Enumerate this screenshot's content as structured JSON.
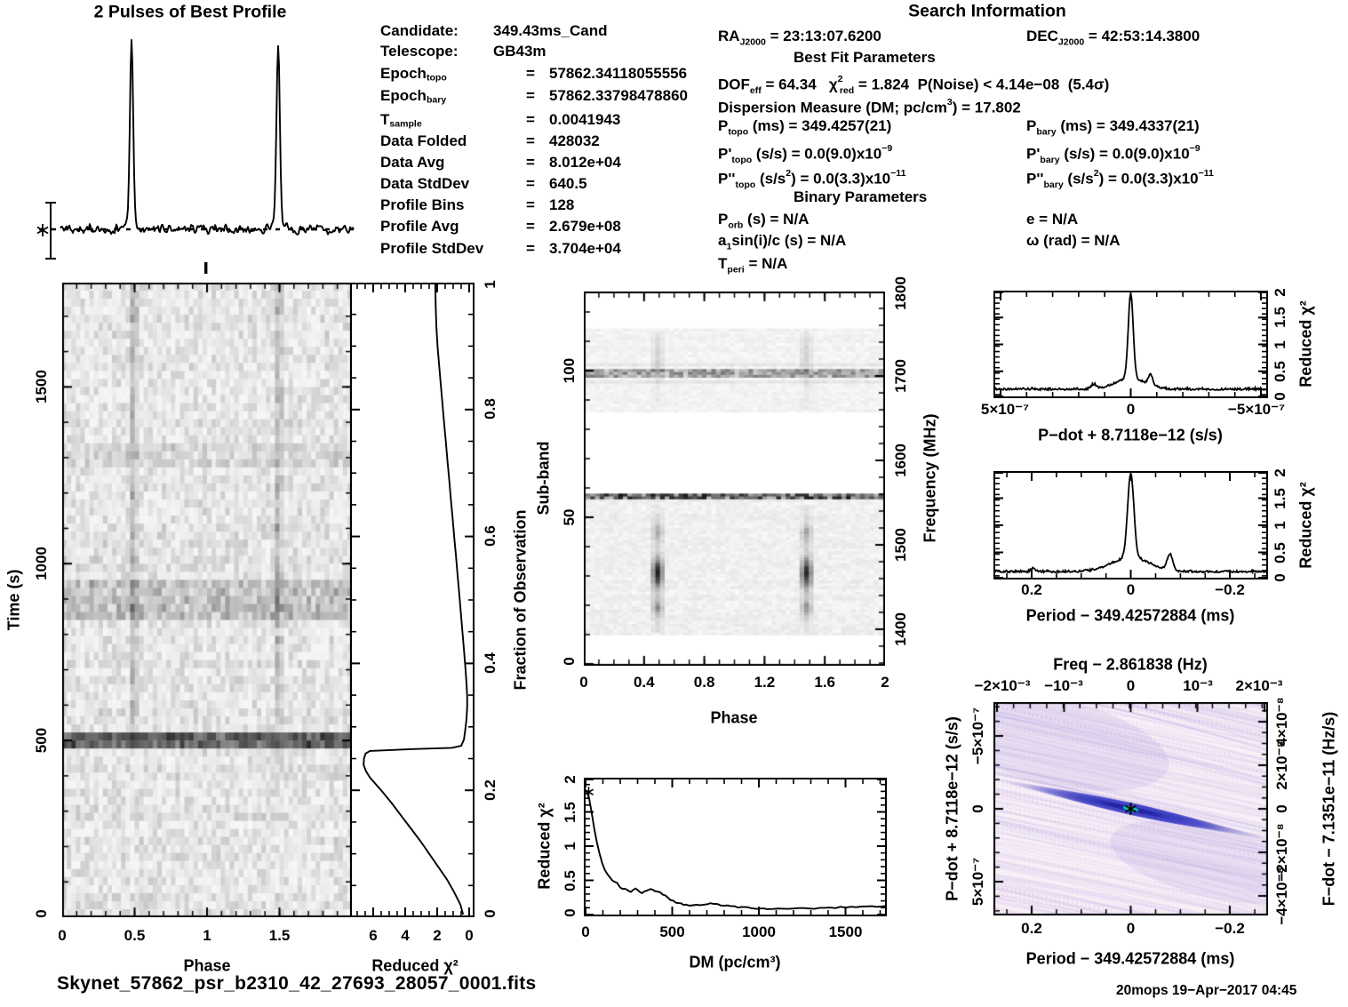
{
  "header": {
    "profile_title": "2 Pulses of Best Profile",
    "search_title": "Search Information"
  },
  "candidate_info": {
    "rows": [
      {
        "label": "Candidate:",
        "sub": "",
        "eq": "",
        "value": "349.43ms_Cand"
      },
      {
        "label": "Telescope:",
        "sub": "",
        "eq": "",
        "value": "GB43m"
      },
      {
        "label": "Epoch",
        "sub": "topo",
        "eq": "=",
        "value": "57862.34118055556"
      },
      {
        "label": "Epoch",
        "sub": "bary",
        "eq": "=",
        "value": "57862.33798478860"
      },
      {
        "label": "T",
        "sub": "sample",
        "eq": "=",
        "value": "0.0041943"
      },
      {
        "label": "Data Folded",
        "sub": "",
        "eq": "=",
        "value": "428032"
      },
      {
        "label": "Data Avg",
        "sub": "",
        "eq": "=",
        "value": "8.012e+04"
      },
      {
        "label": "Data StdDev",
        "sub": "",
        "eq": "=",
        "value": "640.5"
      },
      {
        "label": "Profile Bins",
        "sub": "",
        "eq": "=",
        "value": "128"
      },
      {
        "label": "Profile Avg",
        "sub": "",
        "eq": "=",
        "value": "2.679e+08"
      },
      {
        "label": "Profile StdDev",
        "sub": "",
        "eq": "=",
        "value": "3.704e+04"
      }
    ]
  },
  "search_info": {
    "ra": "RA<sub>J2000</sub> = 23:13:07.6200",
    "dec": "DEC<sub>J2000</sub> = 42:53:14.3800",
    "best_fit_heading": "Best Fit Parameters",
    "dof": "DOF<sub>eff</sub> = 64.34&nbsp;&nbsp;&nbsp;χ<sup>2</sup><sub class='stack'>red</sub> = 1.824&nbsp;&nbsp;P(Noise) < 4.14e−08&nbsp;&nbsp;(5.4σ)",
    "dm": "Dispersion Measure (DM; pc/cm<sup>3</sup>) = 17.802",
    "p_topo": "P<sub>topo</sub> (ms) = 349.4257(21)",
    "p_bary": "P<sub>bary</sub> (ms) = 349.4337(21)",
    "pd_topo": "P'<sub>topo</sub> (s/s) = 0.0(9.0)x10<sup>−9</sup>",
    "pd_bary": "P'<sub>bary</sub> (s/s) = 0.0(9.0)x10<sup>−9</sup>",
    "pdd_topo": "P''<sub>topo</sub> (s/s<sup>2</sup>) = 0.0(3.3)x10<sup>−11</sup>",
    "pdd_bary": "P''<sub>bary</sub> (s/s<sup>2</sup>) = 0.0(3.3)x10<sup>−11</sup>",
    "binary_heading": "Binary Parameters",
    "p_orb": "P<sub>orb</sub> (s) = N/A",
    "ecc": "e = N/A",
    "asini": "a<sub>1</sub>sin(i)/c (s) = N/A",
    "omega": "ω (rad) = N/A",
    "t_peri": "T<sub>peri</sub> = N/A"
  },
  "footer": {
    "filename": "Skynet_57862_psr_b2310_42_27693_28057_0001.fits",
    "stamp": "20mops 19−Apr−2017 04:45"
  },
  "chart_data": [
    {
      "name": "best_profile",
      "type": "line",
      "title": "2 Pulses of Best Profile",
      "x_range": [
        0,
        2
      ],
      "n_bins_per_period": 128,
      "pulse_phases": [
        0.485,
        1.485
      ],
      "pulse_fwhm_phase": 0.022,
      "peak_to_noise_sigma": 12,
      "annotations": [
        "dashed mean-level line",
        "vertical error bar at left",
        "asterisk marker on mean line",
        "small tick below profile near phase 1.16"
      ]
    },
    {
      "name": "time_vs_phase",
      "type": "heatmap",
      "xlabel": "Phase",
      "ylabel": "Time (s)",
      "x_ticks": [
        0,
        0.5,
        1,
        1.5
      ],
      "y_ticks": [
        0,
        500,
        1000,
        1500
      ],
      "x_range": [
        0,
        2
      ],
      "y_range": [
        0,
        1795
      ],
      "features": {
        "pulse_phases": [
          0.47,
          1.47
        ],
        "pulse_visible_after_time_s": 545,
        "rfi_band_times_s": [
          [
            488,
            515
          ]
        ],
        "bright_noise_times_s": [
          [
            840,
            960
          ],
          [
            1265,
            1345
          ]
        ]
      }
    },
    {
      "name": "chi2_vs_fraction",
      "type": "line",
      "xlabel": "Reduced χ²",
      "x_ticks": [
        6,
        4,
        2,
        0
      ],
      "x_range": [
        7.4,
        0
      ],
      "right_label": "Fraction of Observation",
      "right_ticks": [
        0,
        0.2,
        0.4,
        0.6,
        0.8,
        1
      ],
      "points_fraction_chi2": [
        [
          0,
          0.38
        ],
        [
          0.02,
          0.55
        ],
        [
          0.04,
          0.95
        ],
        [
          0.06,
          1.4
        ],
        [
          0.08,
          1.95
        ],
        [
          0.1,
          2.5
        ],
        [
          0.12,
          3.05
        ],
        [
          0.14,
          3.65
        ],
        [
          0.16,
          4.25
        ],
        [
          0.18,
          4.85
        ],
        [
          0.2,
          5.5
        ],
        [
          0.21,
          5.85
        ],
        [
          0.22,
          6.2
        ],
        [
          0.23,
          6.45
        ],
        [
          0.24,
          6.6
        ],
        [
          0.25,
          6.58
        ],
        [
          0.258,
          6.48
        ],
        [
          0.262,
          6.2
        ],
        [
          0.265,
          3.5
        ],
        [
          0.267,
          1.1
        ],
        [
          0.27,
          0.5
        ],
        [
          0.28,
          0.33
        ],
        [
          0.29,
          0.27
        ],
        [
          0.3,
          0.22
        ],
        [
          0.31,
          0.18
        ],
        [
          0.32,
          0.15
        ],
        [
          0.33,
          0.13
        ],
        [
          0.34,
          0.12
        ],
        [
          0.35,
          0.13
        ],
        [
          0.37,
          0.17
        ],
        [
          0.39,
          0.23
        ],
        [
          0.42,
          0.32
        ],
        [
          0.45,
          0.42
        ],
        [
          0.48,
          0.52
        ],
        [
          0.51,
          0.62
        ],
        [
          0.54,
          0.73
        ],
        [
          0.57,
          0.83
        ],
        [
          0.6,
          0.94
        ],
        [
          0.63,
          1.04
        ],
        [
          0.66,
          1.15
        ],
        [
          0.69,
          1.25
        ],
        [
          0.72,
          1.36
        ],
        [
          0.75,
          1.46
        ],
        [
          0.78,
          1.57
        ],
        [
          0.81,
          1.67
        ],
        [
          0.84,
          1.78
        ],
        [
          0.87,
          1.88
        ],
        [
          0.9,
          1.98
        ],
        [
          0.93,
          2.05
        ],
        [
          0.96,
          2.09
        ],
        [
          1,
          2.12
        ]
      ]
    },
    {
      "name": "subband_phase",
      "type": "heatmap",
      "xlabel": "Phase",
      "ylabel": "Sub-band",
      "right_label": "Frequency (MHz)",
      "x_ticks": [
        0,
        0.4,
        0.8,
        1.2,
        1.6,
        2
      ],
      "y_ticks": [
        0,
        50,
        100
      ],
      "right_ticks": [
        1400,
        1500,
        1600,
        1700,
        1800
      ],
      "n_subbands": 128,
      "x_range": [
        0,
        2
      ],
      "features": {
        "signal_bands_subband": [
          [
            10,
            56
          ],
          [
            87,
            115
          ]
        ],
        "rfi_rows_subband": [
          57,
          100
        ],
        "pulse_phases": [
          0.47,
          1.47
        ],
        "hotspot_subband": 31
      }
    },
    {
      "name": "chi2_vs_dm",
      "type": "line",
      "xlabel": "DM (pc/cm³)",
      "ylabel": "Reduced χ²",
      "x_ticks": [
        0,
        500,
        1000,
        1500
      ],
      "y_ticks": [
        0,
        0.5,
        1,
        1.5,
        2
      ],
      "x_range": [
        0,
        1727
      ],
      "y_range": [
        0,
        2.03
      ],
      "best_dm": 17.802,
      "points_dm_chi2": [
        [
          0,
          1.82
        ],
        [
          10,
          1.78
        ],
        [
          20,
          1.7
        ],
        [
          35,
          1.5
        ],
        [
          50,
          1.26
        ],
        [
          65,
          1.05
        ],
        [
          80,
          0.9
        ],
        [
          95,
          0.76
        ],
        [
          110,
          0.66
        ],
        [
          125,
          0.59
        ],
        [
          140,
          0.54
        ],
        [
          155,
          0.5
        ],
        [
          170,
          0.48
        ],
        [
          182,
          0.47
        ],
        [
          192,
          0.42
        ],
        [
          200,
          0.39
        ],
        [
          212,
          0.38
        ],
        [
          225,
          0.38
        ],
        [
          238,
          0.36
        ],
        [
          250,
          0.34
        ],
        [
          262,
          0.33
        ],
        [
          275,
          0.36
        ],
        [
          288,
          0.38
        ],
        [
          300,
          0.36
        ],
        [
          312,
          0.34
        ],
        [
          325,
          0.32
        ],
        [
          338,
          0.33
        ],
        [
          350,
          0.35
        ],
        [
          362,
          0.36
        ],
        [
          375,
          0.37
        ],
        [
          388,
          0.36
        ],
        [
          400,
          0.35
        ],
        [
          415,
          0.34
        ],
        [
          430,
          0.32
        ],
        [
          445,
          0.3
        ],
        [
          460,
          0.27
        ],
        [
          475,
          0.25
        ],
        [
          490,
          0.22
        ],
        [
          505,
          0.2
        ],
        [
          520,
          0.18
        ],
        [
          535,
          0.17
        ],
        [
          550,
          0.16
        ],
        [
          565,
          0.15
        ],
        [
          580,
          0.14
        ],
        [
          600,
          0.135
        ],
        [
          620,
          0.13
        ],
        [
          640,
          0.135
        ],
        [
          660,
          0.14
        ],
        [
          680,
          0.15
        ],
        [
          700,
          0.155
        ],
        [
          720,
          0.16
        ],
        [
          740,
          0.155
        ],
        [
          760,
          0.15
        ],
        [
          780,
          0.14
        ],
        [
          800,
          0.13
        ],
        [
          820,
          0.125
        ],
        [
          840,
          0.12
        ],
        [
          860,
          0.115
        ],
        [
          880,
          0.11
        ],
        [
          900,
          0.105
        ],
        [
          930,
          0.1
        ],
        [
          960,
          0.095
        ],
        [
          990,
          0.09
        ],
        [
          1020,
          0.088
        ],
        [
          1050,
          0.086
        ],
        [
          1080,
          0.085
        ],
        [
          1110,
          0.083
        ],
        [
          1140,
          0.082
        ],
        [
          1170,
          0.082
        ],
        [
          1200,
          0.085
        ],
        [
          1230,
          0.088
        ],
        [
          1260,
          0.09
        ],
        [
          1290,
          0.09
        ],
        [
          1320,
          0.092
        ],
        [
          1350,
          0.095
        ],
        [
          1380,
          0.098
        ],
        [
          1410,
          0.1
        ],
        [
          1440,
          0.103
        ],
        [
          1470,
          0.106
        ],
        [
          1500,
          0.11
        ],
        [
          1530,
          0.113
        ],
        [
          1560,
          0.116
        ],
        [
          1590,
          0.12
        ],
        [
          1620,
          0.12
        ],
        [
          1650,
          0.121
        ],
        [
          1680,
          0.12
        ],
        [
          1710,
          0.12
        ],
        [
          1727,
          0.12
        ]
      ]
    },
    {
      "name": "chi2_vs_pdot",
      "type": "line",
      "xlabel": "P−dot + 8.7118e−12 (s/s)",
      "x_tick_labels": [
        "5×10⁻⁷",
        "0",
        "−5×10⁻⁷"
      ],
      "x_range": [
        5.5e-07,
        -5.5e-07
      ],
      "right_label": "Reduced χ²",
      "right_ticks": [
        0,
        0.5,
        1,
        1.5,
        2
      ],
      "peak": {
        "x": 0,
        "chi2": 1.9
      },
      "baseline_chi2": 0.13,
      "secondary_bump": {
        "x": -8e-08,
        "chi2": 0.33
      }
    },
    {
      "name": "chi2_vs_period",
      "type": "line",
      "xlabel": "Period − 349.42572884 (ms)",
      "x_ticks": [
        0.2,
        0,
        -0.2
      ],
      "x_range": [
        0.277,
        -0.277
      ],
      "right_label": "Reduced χ²",
      "right_ticks": [
        0,
        0.5,
        1,
        1.5,
        2
      ],
      "peak": {
        "x": 0,
        "chi2": 1.87
      },
      "baseline_chi2": 0.1,
      "secondary_bump": {
        "x": -0.08,
        "chi2": 0.42
      }
    },
    {
      "name": "period_pdot_map",
      "type": "heatmap",
      "title": "Freq − 2.861838 (Hz)",
      "top_tick_labels": [
        "−2×10⁻³",
        "−10⁻³",
        "0",
        "10⁻³",
        "2×10⁻³"
      ],
      "xlabel": "Period − 349.42572884 (ms)",
      "x_tick_labels": [
        "0.2",
        "0",
        "−0.2"
      ],
      "left_label": "P−dot + 8.7118e−12 (s/s)",
      "left_tick_labels": [
        "−5×10⁻⁷",
        "0",
        "5×10⁻⁷"
      ],
      "right_label": "F−dot − 7.1351e−11 (Hz/s)",
      "right_tick_labels": [
        "4×10⁻⁸",
        "2×10⁻⁸",
        "0",
        "−2×10⁻⁸",
        "−4×10⁻⁸"
      ],
      "best_point": [
        0,
        0
      ],
      "colors": {
        "background": "#f8eff7",
        "streaks": "#b19fda",
        "ridge": "#3c3cc0",
        "core": "#00cdb0",
        "marker": "#000000"
      },
      "structure": "diagonal covariance ridge through origin with cyan core and black asterisk marker"
    }
  ]
}
